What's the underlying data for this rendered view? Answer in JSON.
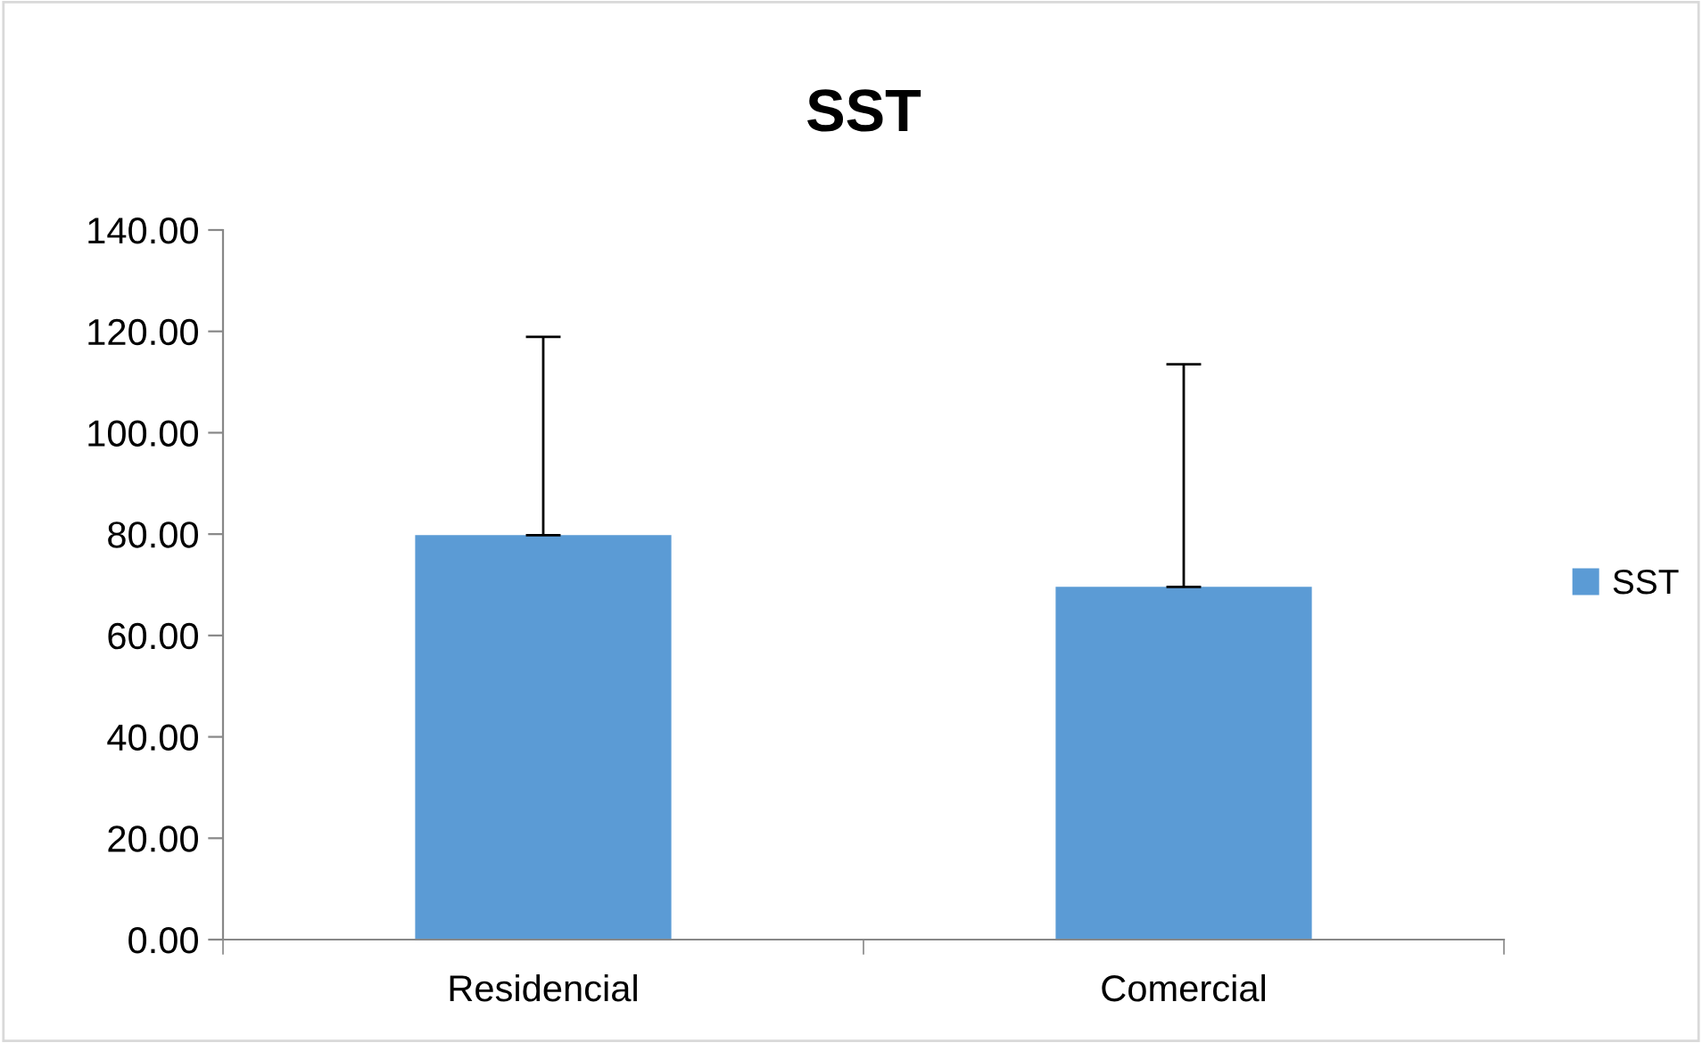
{
  "chart_data": {
    "type": "bar",
    "title": "SST",
    "categories": [
      "Residencial",
      "Comercial"
    ],
    "series": [
      {
        "name": "SST",
        "color": "#5b9bd5",
        "values": [
          79.8,
          69.6
        ],
        "errors": [
          [
            79.8,
            118.9
          ],
          [
            69.6,
            113.5
          ]
        ]
      }
    ],
    "ylim": [
      0,
      140
    ],
    "yticks": [
      {
        "value": 0,
        "label": "0.00"
      },
      {
        "value": 20,
        "label": "20.00"
      },
      {
        "value": 40,
        "label": "40.00"
      },
      {
        "value": 60,
        "label": "60.00"
      },
      {
        "value": 80,
        "label": "80.00"
      },
      {
        "value": 100,
        "label": "100.00"
      },
      {
        "value": 120,
        "label": "120.00"
      },
      {
        "value": 140,
        "label": "140.00"
      }
    ],
    "grid": false,
    "legend": "right"
  }
}
